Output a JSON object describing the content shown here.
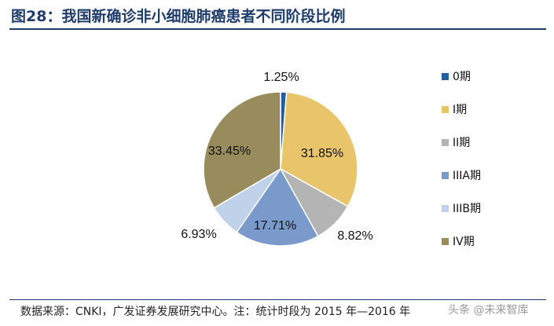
{
  "title": "图28：我国新确诊非小细胞肺癌患者不同阶段比例",
  "source": "数据来源：CNKI，广发证券发展研究中心。注：统计时段为 2015 年—2016 年",
  "watermark": "头条 @未来智库",
  "chart_data": {
    "type": "pie",
    "title": "图28：我国新确诊非小细胞肺癌患者不同阶段比例",
    "start_angle_deg": 0,
    "direction": "clockwise",
    "legend_position": "right",
    "series": [
      {
        "name": "0期",
        "value": 1.25,
        "label": "1.25%",
        "color": "#1f5fa0"
      },
      {
        "name": "I期",
        "value": 31.85,
        "label": "31.85%",
        "color": "#e8c56a"
      },
      {
        "name": "II期",
        "value": 8.82,
        "label": "8.82%",
        "color": "#b4b4b4"
      },
      {
        "name": "IIIA期",
        "value": 17.71,
        "label": "17.71%",
        "color": "#7a9acb"
      },
      {
        "name": "IIIB期",
        "value": 6.93,
        "label": "6.93%",
        "color": "#bfd2ea"
      },
      {
        "name": "IV期",
        "value": 33.45,
        "label": "33.45%",
        "color": "#998c5c"
      }
    ]
  }
}
